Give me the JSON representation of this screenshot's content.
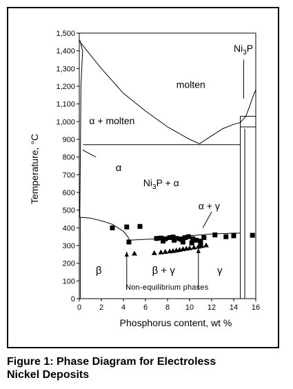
{
  "chart_data": {
    "type": "scatter",
    "title": "",
    "xlabel": "Phosphorus content, wt %",
    "ylabel": "Temperature, °C",
    "xlim": [
      0,
      16
    ],
    "ylim": [
      0,
      1500
    ],
    "x_ticks": [
      "0",
      "2",
      "4",
      "6",
      "8",
      "10",
      "12",
      "14",
      "16"
    ],
    "y_ticks": [
      "0",
      "100",
      "200",
      "300",
      "400",
      "500",
      "600",
      "700",
      "800",
      "900",
      "1,000",
      "1,100",
      "1,200",
      "1,300",
      "1,400",
      "1,500"
    ],
    "grid": false,
    "series": [
      {
        "marker": "square",
        "x": [
          3.0,
          4.3,
          5.5,
          4.5,
          7.0,
          7.4,
          7.8,
          8.2,
          8.5,
          8.8,
          9.2,
          9.6,
          9.9,
          10.3,
          10.6,
          11.0,
          11.3,
          12.3,
          13.3,
          14.0,
          15.7,
          7.6,
          8.6,
          9.4,
          10.2,
          11.0
        ],
        "y": [
          400,
          405,
          408,
          320,
          340,
          342,
          338,
          345,
          348,
          340,
          335,
          345,
          350,
          338,
          330,
          325,
          345,
          360,
          350,
          355,
          358,
          325,
          330,
          320,
          315,
          310
        ]
      },
      {
        "marker": "triangle",
        "x": [
          5.0,
          6.8,
          7.4,
          7.8,
          8.2,
          8.5,
          8.8,
          9.1,
          9.4,
          9.7,
          10.0,
          10.4,
          10.8,
          11.1,
          11.5
        ],
        "y": [
          255,
          258,
          262,
          265,
          268,
          270,
          273,
          276,
          280,
          283,
          286,
          290,
          294,
          298,
          302
        ]
      }
    ],
    "region_labels": {
      "molten": "molten",
      "alpha_molten": "α + molten",
      "alpha": "α",
      "ni3p_alpha": "α",
      "ni3p_top": "P",
      "alpha_gamma": "α + γ",
      "beta": "β",
      "beta_gamma": "β + γ",
      "gamma": "γ",
      "non_eq": "Non-equilibrium phases"
    }
  },
  "caption": {
    "line1": "Figure 1:  Phase Diagram for Electroless",
    "line2": "Nickel Deposits"
  },
  "colors": {
    "ink": "#000000",
    "background": "#ffffff"
  }
}
